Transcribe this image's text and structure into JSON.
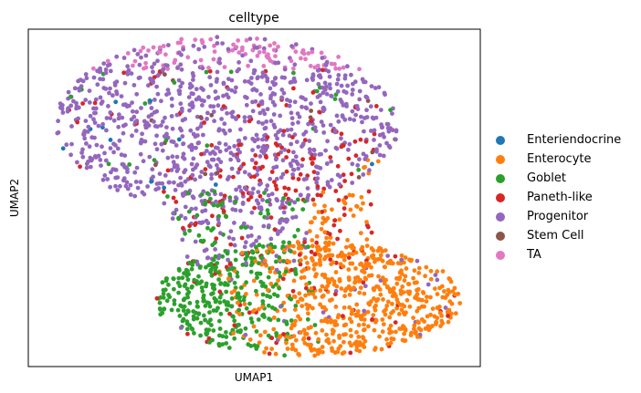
{
  "chart_data": {
    "type": "scatter",
    "title": "celltype",
    "xlabel": "UMAP1",
    "ylabel": "UMAP2",
    "xlim": [
      0,
      100
    ],
    "ylim": [
      0,
      100
    ],
    "grid": false,
    "ticks": "none",
    "legend_placement": "right",
    "legend": [
      {
        "name": "Enteriendocrine",
        "color": "#1f77b4"
      },
      {
        "name": "Enterocyte",
        "color": "#ff7f0e"
      },
      {
        "name": "Goblet",
        "color": "#2ca02c"
      },
      {
        "name": "Paneth-like",
        "color": "#d62728"
      },
      {
        "name": "Progenitor",
        "color": "#9467bd"
      },
      {
        "name": "Stem Cell",
        "color": "#8c564b"
      },
      {
        "name": "TA",
        "color": "#e377c2"
      }
    ]
  }
}
